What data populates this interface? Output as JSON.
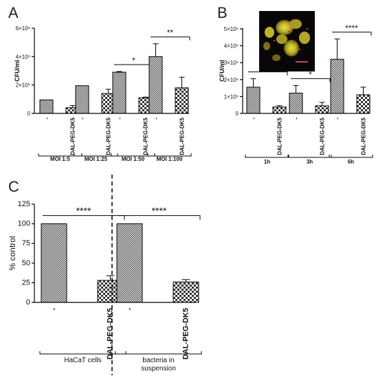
{
  "chart_data": [
    {
      "panel": "A",
      "type": "bar",
      "ylabel": "CFU/ml",
      "ylim": [
        0,
        6000000
      ],
      "yticks": [
        {
          "value": 0,
          "label": "0"
        },
        {
          "value": 2000000,
          "label": "2×10⁶"
        },
        {
          "value": 4000000,
          "label": "4×10⁶"
        },
        {
          "value": 6000000,
          "label": "6×10⁶"
        }
      ],
      "groups": [
        {
          "label": "MOI 1:5",
          "categories": [
            "-",
            "DAL-PEG-DK5"
          ],
          "values": [
            950000,
            400000
          ],
          "errors": [
            0,
            150000
          ],
          "significance": ""
        },
        {
          "label": "MOI 1:25",
          "categories": [
            "-",
            "DAL-PEG-DK5"
          ],
          "values": [
            1950000,
            1400000
          ],
          "errors": [
            0,
            300000
          ],
          "significance": ""
        },
        {
          "label": "MOI 1:50",
          "categories": [
            "-",
            "DAL-PEG-DK5"
          ],
          "values": [
            2900000,
            1100000
          ],
          "errors": [
            50000,
            50000
          ],
          "significance": "*"
        },
        {
          "label": "MOI 1:100",
          "categories": [
            "-",
            "DAL-PEG-DK5"
          ],
          "values": [
            4000000,
            1800000
          ],
          "errors": [
            900000,
            750000
          ],
          "significance": "**"
        }
      ]
    },
    {
      "panel": "B",
      "type": "bar",
      "ylabel": "CFU/ml",
      "ylim": [
        0,
        5000000
      ],
      "yticks": [
        {
          "value": 0,
          "label": "0"
        },
        {
          "value": 1000000,
          "label": "1×10⁶"
        },
        {
          "value": 2000000,
          "label": "2×10⁶"
        },
        {
          "value": 3000000,
          "label": "3×10⁶"
        },
        {
          "value": 4000000,
          "label": "4×10⁶"
        },
        {
          "value": 5000000,
          "label": "5×10⁶"
        }
      ],
      "groups": [
        {
          "label": "1h",
          "categories": [
            "-",
            "DAL-PEG-DK5"
          ],
          "values": [
            1550000,
            380000
          ],
          "errors": [
            500000,
            80000
          ],
          "significance": "**"
        },
        {
          "label": "3h",
          "categories": [
            "-",
            "DAL-PEG-DK5"
          ],
          "values": [
            1200000,
            450000
          ],
          "errors": [
            450000,
            200000
          ],
          "significance": "*"
        },
        {
          "label": "6h",
          "categories": [
            "-",
            "DAL-PEG-DK5"
          ],
          "values": [
            3200000,
            1100000
          ],
          "errors": [
            1200000,
            450000
          ],
          "significance": "****"
        }
      ]
    },
    {
      "panel": "C",
      "type": "bar",
      "ylabel": "% control",
      "ylim": [
        0,
        125
      ],
      "yticks": [
        {
          "value": 0,
          "label": "0"
        },
        {
          "value": 25,
          "label": "25"
        },
        {
          "value": 50,
          "label": "50"
        },
        {
          "value": 75,
          "label": "75"
        },
        {
          "value": 100,
          "label": "100"
        },
        {
          "value": 125,
          "label": "125"
        }
      ],
      "groups": [
        {
          "label": "HaCaT cells",
          "label_lines": [
            "HaCaT cells"
          ],
          "categories": [
            "-",
            "DAL-PEG-DK5"
          ],
          "values": [
            100,
            28
          ],
          "errors": [
            0,
            6
          ],
          "significance": "****"
        },
        {
          "label": "bacteria in suspension",
          "label_lines": [
            "bacteria in",
            "suspension"
          ],
          "categories": [
            "-",
            "DAL-PEG-DK5"
          ],
          "values": [
            100,
            26
          ],
          "errors": [
            0,
            3
          ],
          "significance": "****"
        }
      ]
    }
  ]
}
